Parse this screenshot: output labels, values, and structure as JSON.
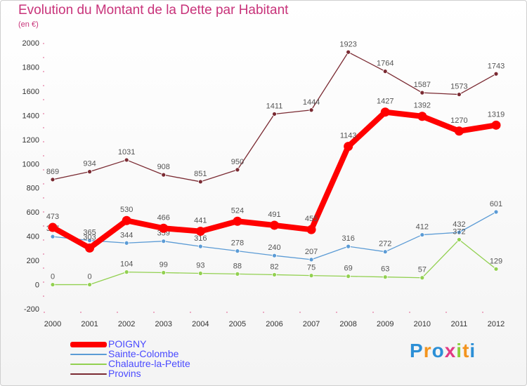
{
  "title": "Evolution du Montant de la Dette par Habitant",
  "unit": "(en €)",
  "brand": {
    "letters": [
      "P",
      "r",
      "o",
      "x",
      "i",
      "t",
      "i"
    ],
    "colors": [
      "#2c8fd6",
      "#f3941e",
      "#2c8fd6",
      "#e23a84",
      "#8ccf3a",
      "#f3941e",
      "#2c8fd6"
    ]
  },
  "chart_data": {
    "type": "line",
    "categories": [
      "2000",
      "2001",
      "2002",
      "2003",
      "2004",
      "2005",
      "2006",
      "2007",
      "2008",
      "2009",
      "2010",
      "2011",
      "2012"
    ],
    "ylim": [
      -200,
      2000
    ],
    "yticks": [
      "2000",
      "1800",
      "1600",
      "1400",
      "1200",
      "1000",
      "800",
      "600",
      "400",
      "200",
      "0",
      "-200"
    ],
    "grid": false,
    "legend_position": "bottom-left",
    "series": [
      {
        "name": "Provins",
        "color": "#7a2a32",
        "values": [
          869,
          934,
          1031,
          908,
          851,
          950,
          1411,
          1444,
          1923,
          1764,
          1587,
          1573,
          1743
        ]
      },
      {
        "name": "Sainte-Colombe",
        "color": "#5b9bd5",
        "values": [
          397,
          365,
          344,
          359,
          316,
          278,
          240,
          207,
          316,
          272,
          412,
          432,
          601
        ]
      },
      {
        "name": "Chalautre-la-Petite",
        "color": "#92d050",
        "values": [
          0,
          0,
          104,
          99,
          93,
          88,
          82,
          75,
          69,
          63,
          57,
          372,
          129
        ]
      },
      {
        "name": "POIGNY",
        "color": "#ff0000",
        "values": [
          473,
          303,
          530,
          466,
          441,
          524,
          491,
          455,
          1143,
          1427,
          1392,
          1270,
          1319
        ]
      }
    ],
    "legend": [
      {
        "name": "POIGNY",
        "color": "#ff0000"
      },
      {
        "name": "Sainte-Colombe",
        "color": "#5b9bd5"
      },
      {
        "name": "Chalautre-la-Petite",
        "color": "#92d050"
      },
      {
        "name": "Provins",
        "color": "#7a2a32"
      }
    ]
  }
}
